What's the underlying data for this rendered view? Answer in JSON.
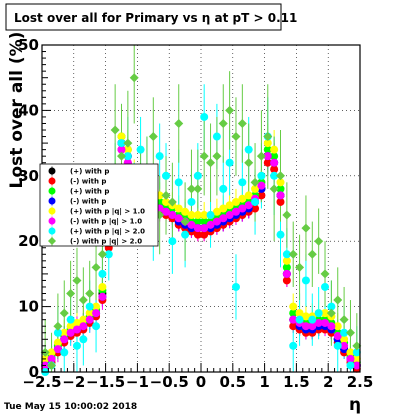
{
  "chart_data": {
    "type": "scatter",
    "title": "Lost over all for Primary vs   η at pT > 0.11",
    "xlabel": "η",
    "ylabel": "Lost over all (%)",
    "xlim": [
      -2.5,
      2.5
    ],
    "ylim": [
      0,
      50
    ],
    "x_tick_labels": [
      "−2.5",
      "−2",
      "−1.5",
      "−1",
      "−0.5",
      "0",
      "0.5",
      "1",
      "1.5",
      "2",
      "2.5"
    ],
    "x_tick_values": [
      -2.5,
      -2,
      -1.5,
      -1,
      -0.5,
      0,
      0.5,
      1,
      1.5,
      2,
      2.5
    ],
    "y_tick_labels": [
      "0",
      "10",
      "20",
      "30",
      "40",
      "50"
    ],
    "y_tick_values": [
      0,
      10,
      20,
      30,
      40,
      50
    ],
    "grid": true,
    "legend_position": "left",
    "footer": "Tue May 15 10:00:02 2018",
    "x": [
      -2.45,
      -2.35,
      -2.25,
      -2.15,
      -2.05,
      -1.95,
      -1.85,
      -1.75,
      -1.65,
      -1.55,
      -1.45,
      -1.35,
      -1.25,
      -1.15,
      -1.05,
      -0.95,
      -0.85,
      -0.75,
      -0.65,
      -0.55,
      -0.45,
      -0.35,
      -0.25,
      -0.15,
      -0.05,
      0.05,
      0.15,
      0.25,
      0.35,
      0.45,
      0.55,
      0.65,
      0.75,
      0.85,
      0.95,
      1.05,
      1.15,
      1.25,
      1.35,
      1.45,
      1.55,
      1.65,
      1.75,
      1.85,
      1.95,
      2.05,
      2.15,
      2.25,
      2.35,
      2.45
    ],
    "series": [
      {
        "name": "(+) with p",
        "marker": "circle",
        "color": "#000000",
        "values": [
          1,
          2,
          3.5,
          5,
          6,
          6.5,
          7,
          8,
          9,
          12,
          20,
          29,
          35,
          33,
          29,
          27,
          27,
          26,
          25,
          24.5,
          24,
          23,
          22.5,
          22,
          22,
          22,
          22,
          22.5,
          23,
          23.5,
          24,
          24.5,
          25,
          26,
          28,
          33,
          32,
          27,
          15,
          8,
          7,
          6.5,
          6.5,
          7,
          7,
          6.5,
          5,
          3.5,
          2,
          1
        ],
        "errors": [
          1,
          1,
          1,
          1,
          1,
          1,
          1,
          1,
          1,
          1,
          1,
          1.2,
          1.5,
          1.5,
          1.2,
          1,
          1,
          1,
          1,
          1,
          1,
          1,
          1,
          1,
          1,
          1,
          1,
          1,
          1,
          1,
          1,
          1,
          1,
          1,
          1.2,
          1.5,
          1.5,
          1.2,
          1,
          1,
          1,
          1,
          1,
          1,
          1,
          1,
          1,
          1,
          1,
          1
        ]
      },
      {
        "name": "(-) with p",
        "marker": "circle",
        "color": "#ff0000",
        "values": [
          0.5,
          1.5,
          3,
          4.5,
          5.5,
          6,
          6.5,
          7.5,
          8.5,
          11,
          19,
          28,
          34,
          32,
          28,
          26,
          26,
          25,
          24.5,
          24,
          23.5,
          22.5,
          22,
          21.5,
          21,
          21,
          21.5,
          22,
          22.5,
          23,
          23.5,
          24,
          24.5,
          25,
          27,
          32,
          31,
          26,
          14,
          7,
          6.5,
          6,
          6,
          6.5,
          6.5,
          6,
          4.5,
          3,
          1.5,
          0.5
        ],
        "errors": [
          1,
          1,
          1,
          1,
          1,
          1,
          1,
          1,
          1,
          1,
          1,
          1.2,
          1.5,
          1.5,
          1.2,
          1,
          1,
          1,
          1,
          1,
          1,
          1,
          1,
          1,
          1,
          1,
          1,
          1,
          1,
          1,
          1,
          1,
          1,
          1,
          1.2,
          1.5,
          1.5,
          1.2,
          1,
          1,
          1,
          1,
          1,
          1,
          1,
          1,
          1,
          1,
          1,
          1
        ]
      },
      {
        "name": "(+) with p",
        "marker": "circle",
        "color": "#00ff00",
        "values": [
          1.5,
          2.5,
          4,
          5.5,
          6.5,
          7,
          7.5,
          8.5,
          9.5,
          12.5,
          21,
          30,
          36,
          34,
          30,
          28,
          28,
          27,
          26,
          25.5,
          25,
          24,
          23.5,
          23,
          23,
          23,
          23,
          23.5,
          24,
          24.5,
          25,
          25.5,
          26,
          27,
          29,
          34,
          33,
          28,
          16,
          9,
          8,
          7.5,
          7.5,
          8,
          8,
          7.5,
          6,
          4.5,
          2.5,
          1.5
        ],
        "errors": [
          1.5,
          1.5,
          1.5,
          1.5,
          1.5,
          1.5,
          1.5,
          1.5,
          1.5,
          1.5,
          1.5,
          1.8,
          2,
          2,
          1.8,
          1.5,
          1.5,
          1.5,
          1.5,
          1.5,
          1.5,
          1.5,
          1.5,
          1.5,
          1.5,
          1.5,
          1.5,
          1.5,
          1.5,
          1.5,
          1.5,
          1.5,
          1.5,
          1.5,
          1.8,
          2,
          2,
          1.8,
          1.5,
          1.5,
          1.5,
          1.5,
          1.5,
          1.5,
          1.5,
          1.5,
          1.5,
          1.5,
          1.5,
          1.5
        ]
      },
      {
        "name": "(-) with p",
        "marker": "circle",
        "color": "#0000ff",
        "values": [
          1,
          2,
          3.5,
          5,
          6,
          6.5,
          7,
          8,
          9,
          11.5,
          20,
          29,
          35,
          33,
          29,
          27,
          27,
          26,
          25,
          24.5,
          24,
          23,
          22.5,
          22,
          22,
          22,
          22,
          22.5,
          23,
          23.5,
          24,
          24.5,
          25,
          26,
          28,
          33,
          32,
          27,
          15,
          8,
          7,
          6.5,
          6.5,
          7,
          7,
          6.5,
          5,
          3.5,
          2,
          1
        ],
        "errors": [
          1.5,
          1.5,
          1.5,
          1.5,
          1.5,
          1.5,
          1.5,
          1.5,
          1.5,
          1.5,
          1.5,
          1.8,
          2,
          2,
          1.8,
          1.5,
          1.5,
          1.5,
          1.5,
          1.5,
          1.5,
          1.5,
          1.5,
          1.5,
          1.5,
          1.5,
          1.5,
          1.5,
          1.5,
          1.5,
          1.5,
          1.5,
          1.5,
          1.5,
          1.8,
          2,
          2,
          1.8,
          1.5,
          1.5,
          1.5,
          1.5,
          1.5,
          1.5,
          1.5,
          1.5,
          1.5,
          1.5,
          1.5,
          1.5
        ]
      },
      {
        "name": "(+) with p |q| > 1.0",
        "marker": "circle",
        "color": "#ffff00",
        "values": [
          2,
          3,
          4.5,
          6,
          7,
          7.5,
          8,
          9,
          10,
          13,
          21,
          30,
          36,
          34,
          30,
          29,
          28.5,
          28,
          27,
          26,
          25.5,
          25,
          24.5,
          24,
          24,
          24,
          24,
          24.5,
          25,
          25.5,
          26,
          26.5,
          27,
          28,
          30,
          35,
          34,
          29,
          17,
          10,
          9,
          8.5,
          8.5,
          9,
          9,
          8.5,
          7,
          5,
          3,
          2
        ],
        "errors": [
          2,
          2,
          2,
          2,
          2,
          2,
          2,
          2,
          2,
          2,
          2,
          2.5,
          3,
          3,
          2.5,
          2,
          2,
          2,
          2,
          2,
          2,
          2,
          2,
          2,
          2,
          2,
          2,
          2,
          2,
          2,
          2,
          2,
          2,
          2,
          2.5,
          3,
          3,
          2.5,
          2,
          2,
          2,
          2,
          2,
          2,
          2,
          2,
          2,
          2,
          2,
          2
        ]
      },
      {
        "name": "(-) with p |q| > 1.0",
        "marker": "circle",
        "color": "#ff00ff",
        "values": [
          1,
          2,
          3.5,
          5,
          6,
          6.5,
          7,
          8,
          9,
          11.5,
          20,
          28,
          34,
          32,
          29,
          27,
          26.5,
          26,
          25,
          24.5,
          24,
          23.5,
          23,
          22.5,
          22,
          22,
          22.5,
          23,
          23.5,
          24,
          24.5,
          25,
          25.5,
          26.5,
          28.5,
          33,
          32,
          27,
          15,
          8,
          7.5,
          7,
          7,
          7.5,
          7.5,
          7,
          5.5,
          4,
          2,
          1
        ],
        "errors": [
          2,
          2,
          2,
          2,
          2,
          2,
          2,
          2,
          2,
          2,
          2,
          2.5,
          3,
          3,
          2.5,
          2,
          2,
          2,
          2,
          2,
          2,
          2,
          2,
          2,
          2,
          2,
          2,
          2,
          2,
          2,
          2,
          2,
          2,
          2,
          2.5,
          3,
          3,
          2.5,
          2,
          2,
          2,
          2,
          2,
          2,
          2,
          2,
          2,
          2,
          2,
          2
        ]
      },
      {
        "name": "(+) with p |q| > 2.0",
        "marker": "circle",
        "color": "#00ffff",
        "values": [
          0,
          1,
          6,
          3,
          8,
          4,
          5,
          10,
          7,
          15,
          18,
          30,
          35,
          33,
          27,
          34,
          31,
          22,
          33,
          30,
          20,
          29,
          21,
          26,
          30,
          39,
          24,
          36,
          28,
          32,
          13,
          29,
          34,
          26,
          30,
          36,
          30,
          21,
          18,
          4,
          8,
          14,
          8,
          9,
          13,
          10,
          4,
          6,
          1,
          3
        ],
        "errors": [
          4,
          4,
          4,
          4,
          4,
          4,
          4,
          4,
          4,
          4,
          4,
          5,
          6,
          6,
          5,
          5,
          5,
          5,
          5,
          5,
          5,
          5,
          5,
          5,
          5,
          5,
          5,
          5,
          5,
          5,
          5,
          5,
          5,
          5,
          5,
          6,
          6,
          5,
          4,
          4,
          4,
          4,
          4,
          4,
          4,
          4,
          4,
          4,
          4,
          4
        ]
      },
      {
        "name": "(-) with p |q| > 2.0",
        "marker": "diamond",
        "color": "#66cc44",
        "values": [
          3,
          1,
          7,
          9,
          12,
          14,
          11,
          12,
          16,
          18,
          25,
          37,
          33,
          35,
          45,
          28,
          30,
          36,
          24,
          27,
          26,
          38,
          23,
          28,
          28,
          33,
          32,
          33,
          38,
          40,
          36,
          38,
          32,
          29,
          33,
          36,
          28,
          30,
          24,
          18,
          16,
          22,
          18,
          20,
          15,
          9,
          11,
          8,
          6,
          4
        ],
        "errors": [
          5,
          5,
          5,
          5,
          5,
          5,
          5,
          5,
          5,
          5,
          5,
          7,
          8,
          8,
          7,
          6,
          6,
          6,
          6,
          6,
          6,
          6,
          6,
          6,
          6,
          6,
          6,
          6,
          6,
          6,
          6,
          6,
          6,
          6,
          7,
          8,
          8,
          7,
          5,
          5,
          5,
          5,
          5,
          5,
          5,
          5,
          5,
          5,
          5,
          5
        ]
      }
    ]
  },
  "legend": {
    "items": [
      {
        "label": "(+) with p",
        "color": "#000000"
      },
      {
        "label": "(-) with p",
        "color": "#ff0000"
      },
      {
        "label": "(+) with p",
        "color": "#00ff00"
      },
      {
        "label": "(-) with p",
        "color": "#0000ff"
      },
      {
        "label": "(+) with p |q| > 1.0",
        "color": "#ffff00"
      },
      {
        "label": "(-) with p |q| > 1.0",
        "color": "#ff00ff"
      },
      {
        "label": "(+) with p |q| > 2.0",
        "color": "#00ffff"
      },
      {
        "label": "(-) with p |q| > 2.0",
        "color": "#66cc44"
      }
    ]
  }
}
